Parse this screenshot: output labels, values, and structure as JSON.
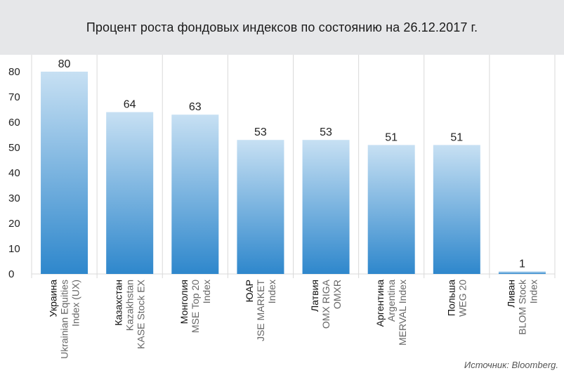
{
  "title": "Процент роста фондовых индексов по состоянию на 26.12.2017 г.",
  "source": "Источник: Bloomberg.",
  "colors": {
    "header_bg": "#e6e7e9",
    "bar_top": "#c7e0f3",
    "bar_bottom": "#2e87cc",
    "grid": "#d9d9d9",
    "plot_bg": "#ffffff"
  },
  "chart_data": {
    "type": "bar",
    "categories": [
      {
        "country": "Украина",
        "index": [
          "Ukrainian Equities",
          "Index (UX)"
        ]
      },
      {
        "country": "Казахстан",
        "index": [
          "Kazakhstan",
          "KASE Stock EX"
        ]
      },
      {
        "country": "Монголия",
        "index": [
          "MSE Top 20",
          "Index"
        ]
      },
      {
        "country": "ЮАР",
        "index": [
          "JSE MARKET",
          "Index"
        ]
      },
      {
        "country": "Латвия",
        "index": [
          "OMX RIGA",
          "OMXR"
        ]
      },
      {
        "country": "Аргентина",
        "index": [
          "Argentina",
          "MERVAL Index"
        ]
      },
      {
        "country": "Польша",
        "index": [
          "WEG 20"
        ]
      },
      {
        "country": "Ливан",
        "index": [
          "BLOM Stock",
          "Index"
        ]
      }
    ],
    "values": [
      80,
      64,
      63,
      53,
      53,
      51,
      51,
      1
    ],
    "data_labels": [
      "80",
      "64",
      "63",
      "53",
      "53",
      "51",
      "51",
      "1"
    ],
    "y_ticks": [
      "0",
      "10",
      "20",
      "30",
      "40",
      "50",
      "60",
      "70",
      "80"
    ],
    "ylim": [
      0,
      80
    ],
    "grid": true,
    "xlabel": "",
    "ylabel": ""
  }
}
